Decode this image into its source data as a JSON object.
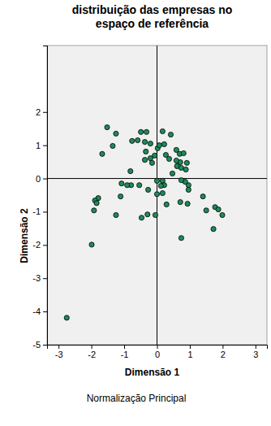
{
  "chart_data": {
    "type": "scatter",
    "title": "distribuição das empresas no\nespaço de referência",
    "x_label": "Dimensão 1",
    "y_label": "Dimensão 2",
    "annotations": [
      "Normalização Principal"
    ],
    "marker": "circle",
    "color": "#1f8a5a",
    "xlim": [
      -3.35,
      3.35
    ],
    "ylim": [
      -5,
      4
    ],
    "xticks": [
      -3,
      -2,
      -1,
      0,
      1,
      2,
      3
    ],
    "yticks": [
      -5,
      -4,
      -3,
      -2,
      -1,
      0,
      1,
      2
    ],
    "grid": false,
    "x": [
      -1.52,
      -1.25,
      -1.35,
      -1.67,
      -0.76,
      -0.59,
      -0.49,
      -0.32,
      -0.37,
      -0.2,
      -0.34,
      -0.37,
      -0.2,
      -0.15,
      -0.07,
      0.02,
      0.07,
      0.22,
      0.17,
      0.42,
      0.27,
      0.37,
      0.47,
      0.59,
      0.69,
      0.81,
      0.61,
      0.74,
      0.88,
      0.91,
      0.71,
      0.59,
      0.96,
      0.96,
      0.86,
      0.74,
      0.17,
      0.22,
      0.12,
      0.0,
      0.0,
      0.17,
      0.29,
      -0.05,
      -0.47,
      -0.29,
      -0.27,
      -0.54,
      -0.79,
      -0.91,
      -1.11,
      -1.08,
      -0.81,
      -1.25,
      -1.79,
      -1.89,
      -1.84,
      -1.92,
      -1.99,
      -2.75,
      0.71,
      0.93,
      0.74,
      1.4,
      1.5,
      1.72,
      1.77,
      1.87,
      1.99
    ],
    "values": [
      1.54,
      1.35,
      0.98,
      0.74,
      1.13,
      1.15,
      1.4,
      1.4,
      1.1,
      1.05,
      0.81,
      0.56,
      0.61,
      0.47,
      0.69,
      0.91,
      1.0,
      1.03,
      1.42,
      1.32,
      0.71,
      0.59,
      0.15,
      0.86,
      0.74,
      0.76,
      0.37,
      0.32,
      0.27,
      0.47,
      0.49,
      0.54,
      -0.2,
      -0.34,
      -0.1,
      -0.05,
      -0.07,
      -0.2,
      -0.22,
      -0.07,
      -0.47,
      -0.44,
      -0.78,
      -1.1,
      -1.18,
      -1.08,
      -0.34,
      -0.2,
      -0.2,
      -0.2,
      -0.54,
      -0.15,
      0.22,
      -1.1,
      -0.59,
      -0.66,
      -0.74,
      -0.96,
      -1.99,
      -4.19,
      -0.71,
      -0.76,
      -1.79,
      -0.54,
      -0.96,
      -1.52,
      -0.86,
      -0.93,
      -1.1
    ]
  }
}
